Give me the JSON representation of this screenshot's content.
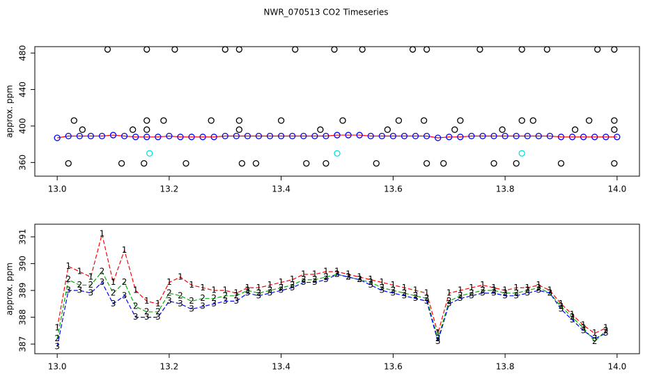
{
  "chart_data": [
    {
      "type": "scatter",
      "title": "NWR_070513  CO2 Timeseries",
      "ylabel": "approx. ppm",
      "xlim": [
        12.96,
        14.04
      ],
      "ylim": [
        345,
        487
      ],
      "xticks": [
        {
          "value": 13,
          "label": "13.0"
        },
        {
          "value": 13.2,
          "label": "13.2"
        },
        {
          "value": 13.4,
          "label": "13.4"
        },
        {
          "value": 13.6,
          "label": "13.6"
        },
        {
          "value": 13.8,
          "label": "13.8"
        },
        {
          "value": 14,
          "label": "14.0"
        }
      ],
      "yticks": [
        360,
        400,
        440,
        480
      ],
      "series": [
        {
          "color": "#0000ff",
          "line_color": "#ff0000",
          "x": [
            13.0,
            13.02,
            13.04,
            13.06,
            13.08,
            13.1,
            13.12,
            13.14,
            13.16,
            13.18,
            13.2,
            13.22,
            13.24,
            13.26,
            13.28,
            13.3,
            13.32,
            13.34,
            13.36,
            13.38,
            13.4,
            13.42,
            13.44,
            13.46,
            13.48,
            13.5,
            13.52,
            13.54,
            13.56,
            13.58,
            13.6,
            13.62,
            13.64,
            13.66,
            13.68,
            13.7,
            13.72,
            13.74,
            13.76,
            13.78,
            13.8,
            13.82,
            13.84,
            13.86,
            13.88,
            13.9,
            13.92,
            13.94,
            13.96,
            13.98,
            14.0
          ],
          "values": [
            387,
            389,
            389,
            389,
            389,
            390,
            389,
            388,
            388,
            388,
            389,
            388,
            388,
            388,
            388,
            389,
            389,
            389,
            389,
            389,
            389,
            389,
            389,
            389,
            389,
            390,
            390,
            390,
            389,
            389,
            389,
            389,
            389,
            389,
            387,
            388,
            388,
            389,
            389,
            389,
            389,
            389,
            389,
            389,
            389,
            388,
            388,
            388,
            388,
            388,
            388
          ]
        },
        {
          "color": "#000000",
          "x": [
            13.09,
            13.16,
            13.21,
            13.3,
            13.325,
            13.425,
            13.495,
            13.545,
            13.635,
            13.66,
            13.755,
            13.83,
            13.875,
            13.965,
            13.995,
            13.03,
            13.16,
            13.19,
            13.275,
            13.325,
            13.4,
            13.51,
            13.61,
            13.655,
            13.72,
            13.83,
            13.85,
            13.95,
            13.995,
            13.045,
            13.135,
            13.16,
            13.325,
            13.47,
            13.59,
            13.71,
            13.795,
            13.925,
            13.995,
            13.02,
            13.115,
            13.155,
            13.23,
            13.33,
            13.355,
            13.445,
            13.48,
            13.57,
            13.66,
            13.69,
            13.78,
            13.82,
            13.9,
            13.995
          ],
          "values": [
            484,
            484,
            484,
            484,
            484,
            484,
            484,
            484,
            484,
            484,
            484,
            484,
            484,
            484,
            484,
            406,
            406,
            406,
            406,
            406,
            406,
            406,
            406,
            406,
            406,
            406,
            406,
            406,
            406,
            396,
            396,
            396,
            396,
            396,
            396,
            396,
            396,
            396,
            396,
            359,
            359,
            359,
            359,
            359,
            359,
            359,
            359,
            359,
            359,
            359,
            359,
            359,
            359,
            359
          ]
        },
        {
          "color": "#00e0e0",
          "x": [
            13.165,
            13.5,
            13.83
          ],
          "values": [
            370,
            370,
            370
          ]
        }
      ]
    },
    {
      "type": "line",
      "ylabel": "approx. ppm",
      "xlim": [
        12.96,
        14.04
      ],
      "ylim": [
        386.64,
        391.47
      ],
      "xticks": [
        {
          "value": 13,
          "label": "13.0"
        },
        {
          "value": 13.2,
          "label": "13.2"
        },
        {
          "value": 13.4,
          "label": "13.4"
        },
        {
          "value": 13.6,
          "label": "13.6"
        },
        {
          "value": 13.8,
          "label": "13.8"
        },
        {
          "value": 14,
          "label": "14.0"
        }
      ],
      "yticks": [
        387,
        388,
        389,
        390,
        391
      ],
      "x": [
        13.0,
        13.02,
        13.04,
        13.06,
        13.08,
        13.1,
        13.12,
        13.14,
        13.16,
        13.18,
        13.2,
        13.22,
        13.24,
        13.26,
        13.28,
        13.3,
        13.32,
        13.34,
        13.36,
        13.38,
        13.4,
        13.42,
        13.44,
        13.46,
        13.48,
        13.5,
        13.52,
        13.54,
        13.56,
        13.58,
        13.6,
        13.62,
        13.64,
        13.66,
        13.68,
        13.7,
        13.72,
        13.74,
        13.76,
        13.78,
        13.8,
        13.82,
        13.84,
        13.86,
        13.88,
        13.9,
        13.92,
        13.94,
        13.96,
        13.98
      ],
      "series": [
        {
          "name": "1",
          "color": "#ff0000",
          "values": [
            387.6,
            389.9,
            389.7,
            389.5,
            391.1,
            389.3,
            390.5,
            389.0,
            388.6,
            388.5,
            389.3,
            389.5,
            389.2,
            389.1,
            389.0,
            389.0,
            388.9,
            389.1,
            389.1,
            389.2,
            389.3,
            389.4,
            389.6,
            389.6,
            389.7,
            389.7,
            389.6,
            389.5,
            389.4,
            389.3,
            389.2,
            389.1,
            389.0,
            388.9,
            387.4,
            388.9,
            389.0,
            389.1,
            389.2,
            389.1,
            389.0,
            389.1,
            389.1,
            389.2,
            389.0,
            388.5,
            388.1,
            387.7,
            387.4,
            387.6
          ]
        },
        {
          "name": "2",
          "color": "#00b000",
          "values": [
            387.2,
            389.4,
            389.2,
            389.2,
            389.7,
            388.9,
            389.3,
            388.4,
            388.2,
            388.2,
            388.9,
            388.8,
            388.6,
            388.7,
            388.7,
            388.8,
            388.8,
            389.0,
            388.9,
            389.0,
            389.1,
            389.2,
            389.4,
            389.4,
            389.5,
            389.6,
            389.5,
            389.4,
            389.3,
            389.1,
            389.0,
            388.9,
            388.8,
            388.7,
            387.2,
            388.6,
            388.8,
            388.9,
            389.0,
            389.0,
            388.9,
            388.9,
            389.0,
            389.1,
            388.9,
            388.4,
            388.0,
            387.6,
            387.1,
            387.5
          ]
        },
        {
          "name": "3",
          "color": "#0000ff",
          "values": [
            386.9,
            389.0,
            389.0,
            388.9,
            389.3,
            388.5,
            388.8,
            388.0,
            388.0,
            388.0,
            388.6,
            388.5,
            388.3,
            388.4,
            388.5,
            388.6,
            388.6,
            388.9,
            388.8,
            388.9,
            389.0,
            389.1,
            389.3,
            389.3,
            389.4,
            389.6,
            389.5,
            389.4,
            389.2,
            389.0,
            388.9,
            388.8,
            388.7,
            388.6,
            387.1,
            388.5,
            388.7,
            388.8,
            388.9,
            388.9,
            388.8,
            388.8,
            388.9,
            389.0,
            388.9,
            388.3,
            387.9,
            387.5,
            387.2,
            387.4
          ]
        }
      ]
    }
  ]
}
